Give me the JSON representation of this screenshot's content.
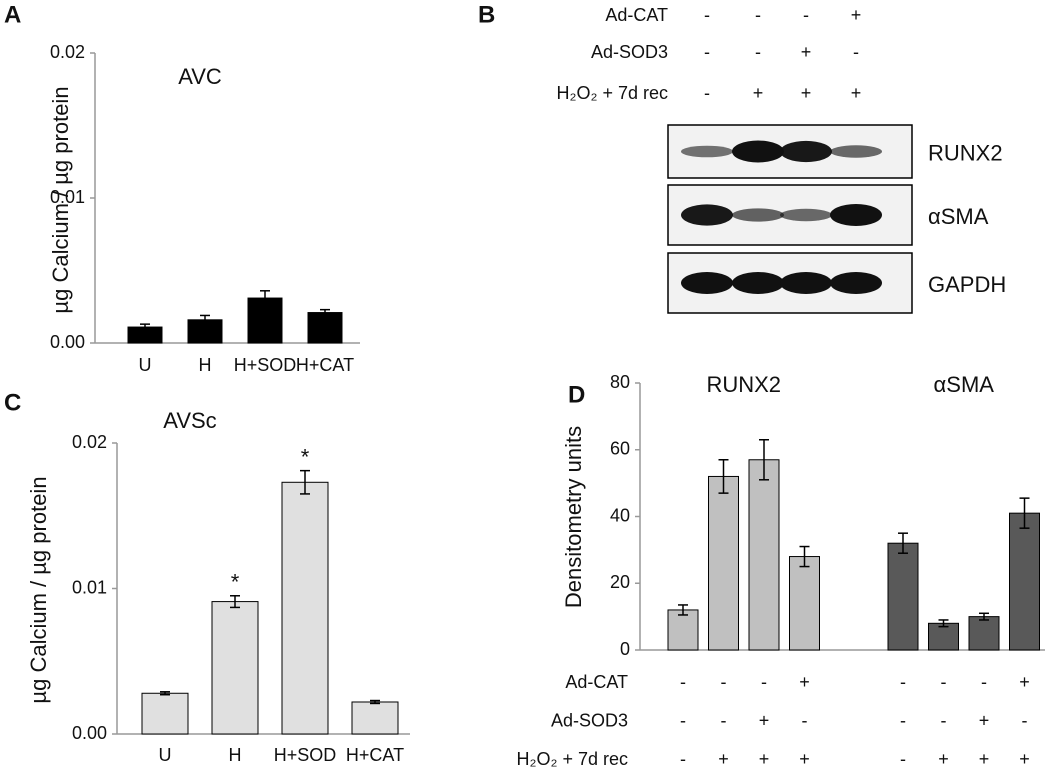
{
  "panel_labels": [
    "A",
    "B",
    "C",
    "D"
  ],
  "blot": {
    "treatments": [
      {
        "label": "Ad-CAT",
        "signs": [
          "-",
          "-",
          "-",
          "+"
        ]
      },
      {
        "label": "Ad-SOD3",
        "signs": [
          "-",
          "-",
          "+",
          "-"
        ]
      },
      {
        "label": "H₂O₂ + 7d rec",
        "signs": [
          "-",
          "+",
          "+",
          "+"
        ]
      }
    ],
    "bands": [
      "RUNX2",
      "αSMA",
      "GAPDH"
    ]
  },
  "chart_data": [
    {
      "type": "bar",
      "title": "AVC",
      "y_label": "µg Calcium / µg protein",
      "categories": [
        "U",
        "H",
        "H+SOD",
        "H+CAT"
      ],
      "values": [
        0.0011,
        0.0016,
        0.0031,
        0.0021
      ],
      "errors": [
        0.0002,
        0.0003,
        0.0005,
        0.0002
      ],
      "color": "#000000",
      "ylim": [
        0,
        0.02
      ],
      "yticks": [
        {
          "value": 0,
          "label": "0.00"
        },
        0.01,
        0.02
      ]
    },
    {
      "type": "bar",
      "title": "AVSc",
      "y_label": "µg Calcium / µg protein",
      "categories": [
        "U",
        "H",
        "H+SOD",
        "H+CAT"
      ],
      "values": [
        0.0028,
        0.0091,
        0.0173,
        0.0022
      ],
      "errors": [
        0.0001,
        0.0004,
        0.0008,
        0.0001
      ],
      "annotations": [
        null,
        "*",
        "*",
        null
      ],
      "color": "#e0e0e0",
      "ylim": [
        0,
        0.02
      ],
      "yticks": [
        {
          "value": 0,
          "label": "0.00"
        },
        0.01,
        0.02
      ]
    },
    {
      "type": "grouped_bar",
      "y_label": "Densitometry units",
      "ylim": [
        0,
        80
      ],
      "yticks": [
        0,
        20,
        40,
        60,
        80
      ],
      "groups": [
        {
          "name": "RUNX2",
          "color": "#c0c0c0",
          "values": [
            12,
            52,
            57,
            28
          ],
          "errors": [
            1.5,
            5,
            6,
            3
          ]
        },
        {
          "name": "αSMA",
          "color": "#595959",
          "values": [
            32,
            8,
            10,
            41
          ],
          "errors": [
            3,
            1,
            1,
            4.5
          ]
        }
      ],
      "treatments": [
        {
          "label": "Ad-CAT",
          "signs": [
            "-",
            "-",
            "-",
            "+",
            "-",
            "-",
            "-",
            "+"
          ]
        },
        {
          "label": "Ad-SOD3",
          "signs": [
            "-",
            "-",
            "+",
            "-",
            "-",
            "-",
            "+",
            "-"
          ]
        },
        {
          "label": "H₂O₂ + 7d rec",
          "signs": [
            "-",
            "+",
            "+",
            "+",
            "-",
            "+",
            "+",
            "+"
          ]
        }
      ]
    }
  ]
}
